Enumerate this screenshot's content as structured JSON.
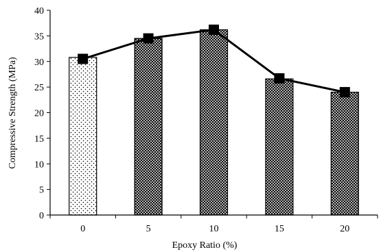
{
  "chart_data": {
    "type": "bar",
    "categories": [
      "0",
      "5",
      "10",
      "15",
      "20"
    ],
    "values": [
      30.8,
      34.5,
      36.2,
      26.6,
      24.0
    ],
    "line_values": [
      30.5,
      34.5,
      36.2,
      26.7,
      24.0
    ],
    "xlabel": "Epoxy Ratio (%)",
    "ylabel": "Compressive Strength (MPa)",
    "ylim": [
      0,
      40
    ],
    "yticks": [
      "0",
      "5",
      "10",
      "15",
      "20",
      "25",
      "30",
      "35",
      "40"
    ],
    "grid": false,
    "legend": "none",
    "colors": {
      "bar_outline": "#000000",
      "line": "#000000",
      "marker": "#000000"
    },
    "bar_patterns": [
      "dots",
      "crosshatch",
      "crosshatch",
      "crosshatch",
      "crosshatch"
    ]
  }
}
